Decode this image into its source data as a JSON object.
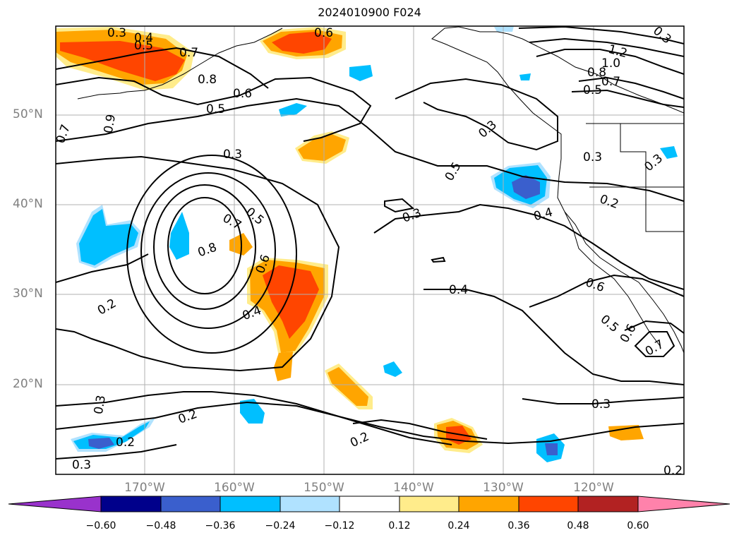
{
  "title": "2024010900 F024",
  "lat_labels": [
    "50°N",
    "40°N",
    "30°N",
    "20°N"
  ],
  "lon_labels": [
    "170°W",
    "160°W",
    "150°W",
    "140°W",
    "130°W",
    "120°W"
  ],
  "colorbar": {
    "ticks": [
      "−0.60",
      "−0.48",
      "−0.36",
      "−0.24",
      "−0.12",
      "0.12",
      "0.24",
      "0.36",
      "0.48",
      "0.60"
    ],
    "colors": [
      "#9932cc",
      "#00008b",
      "#3a5fcd",
      "#00bfff",
      "#b0e2ff",
      "#ffffff",
      "#ffec8b",
      "#ffa500",
      "#ff4500",
      "#b22222",
      "#ff82ab"
    ]
  },
  "contour_labels": [
    "0.3",
    "0.4",
    "0.5",
    "0.7",
    "0.6",
    "0.8",
    "0.6",
    "0.5",
    "0.3",
    "0.9",
    "0.7",
    "1.2",
    "1.0",
    "0.8",
    "0.7",
    "0.5",
    "0.3",
    "0.5",
    "0.3",
    "0.3",
    "0.7",
    "0.5",
    "0.8",
    "0.6",
    "0.4",
    "0.3",
    "0.4",
    "0.2",
    "0.4",
    "0.6",
    "0.2",
    "0.5",
    "0.6",
    "0.7",
    "0.3",
    "0.2",
    "0.3",
    "0.2",
    "0.2",
    "0.3",
    "0.3",
    "0.2"
  ]
}
